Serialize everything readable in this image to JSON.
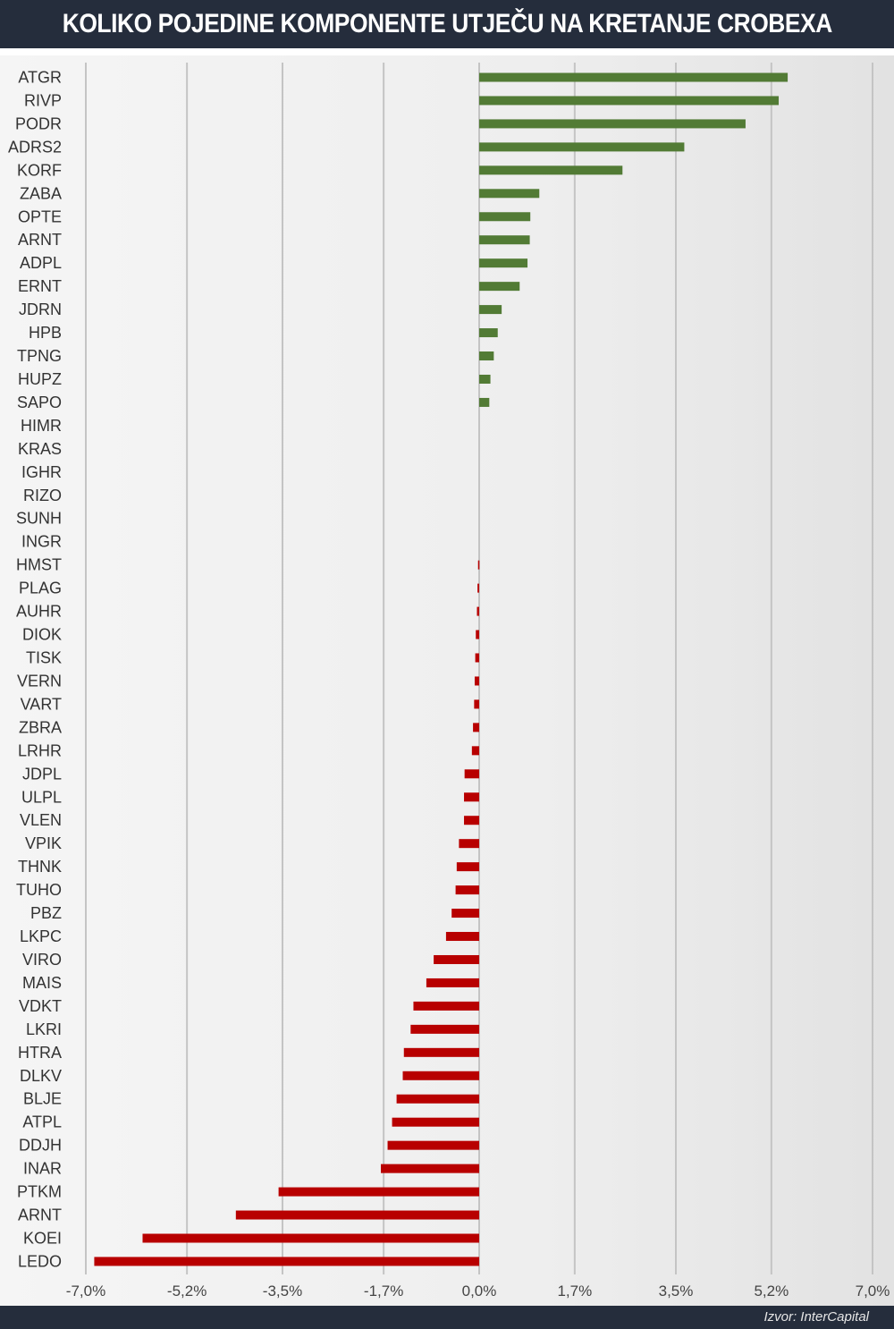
{
  "header": {
    "title": "KOLIKO POJEDINE KOMPONENTE UTJEČU NA KRETANJE CROBEXA"
  },
  "footer": {
    "source": "Izvor: InterCapital"
  },
  "colors": {
    "positive": "#527b35",
    "negative": "#b80000",
    "header_bg": "#252d3c",
    "grid": "#c4c4c4"
  },
  "chart_data": {
    "type": "bar",
    "orientation": "horizontal",
    "title": "KOLIKO POJEDINE KOMPONENTE UTJEČU NA KRETANJE CROBEXA",
    "xlim": [
      -7.0,
      7.0
    ],
    "x_ticks": [
      -7.0,
      -5.2,
      -3.5,
      -1.7,
      0.0,
      1.7,
      3.5,
      5.2,
      7.0
    ],
    "x_tick_labels": [
      "-7,0%",
      "-5,2%",
      "-3,5%",
      "-1,7%",
      "0,0%",
      "1,7%",
      "3,5%",
      "5,2%",
      "7,0%"
    ],
    "grid": true,
    "categories": [
      "ATGR",
      "RIVP",
      "PODR",
      "ADRS2",
      "KORF",
      "ZABA",
      "OPTE",
      "ARNT",
      "ADPL",
      "ERNT",
      "JDRN",
      "HPB",
      "TPNG",
      "HUPZ",
      "SAPO",
      "HIMR",
      "KRAS",
      "IGHR",
      "RIZO",
      "SUNH",
      "INGR",
      "HMST",
      "PLAG",
      "AUHR",
      "DIOK",
      "TISK",
      "VERN",
      "VART",
      "ZBRA",
      "LRHR",
      "JDPL",
      "ULPL",
      "VLEN",
      "VPIK",
      "THNK",
      "TUHO",
      "PBZ",
      "LKPC",
      "VIRO",
      "MAIS",
      "VDKT",
      "LKRI",
      "HTRA",
      "DLKV",
      "BLJE",
      "ATPL",
      "DDJH",
      "INAR",
      "PTKM",
      "ARNT",
      "KOEI",
      "LEDO"
    ],
    "values": [
      5.49,
      5.33,
      4.74,
      3.65,
      2.55,
      1.07,
      0.91,
      0.9,
      0.86,
      0.72,
      0.4,
      0.33,
      0.26,
      0.2,
      0.18,
      0.0,
      0.0,
      0.0,
      0.0,
      0.0,
      0.0,
      -0.02,
      -0.03,
      -0.04,
      -0.06,
      -0.07,
      -0.08,
      -0.09,
      -0.11,
      -0.13,
      -0.26,
      -0.27,
      -0.27,
      -0.36,
      -0.4,
      -0.42,
      -0.49,
      -0.59,
      -0.81,
      -0.94,
      -1.17,
      -1.22,
      -1.34,
      -1.36,
      -1.47,
      -1.55,
      -1.63,
      -1.75,
      -3.57,
      -4.33,
      -5.99,
      -6.85
    ]
  }
}
